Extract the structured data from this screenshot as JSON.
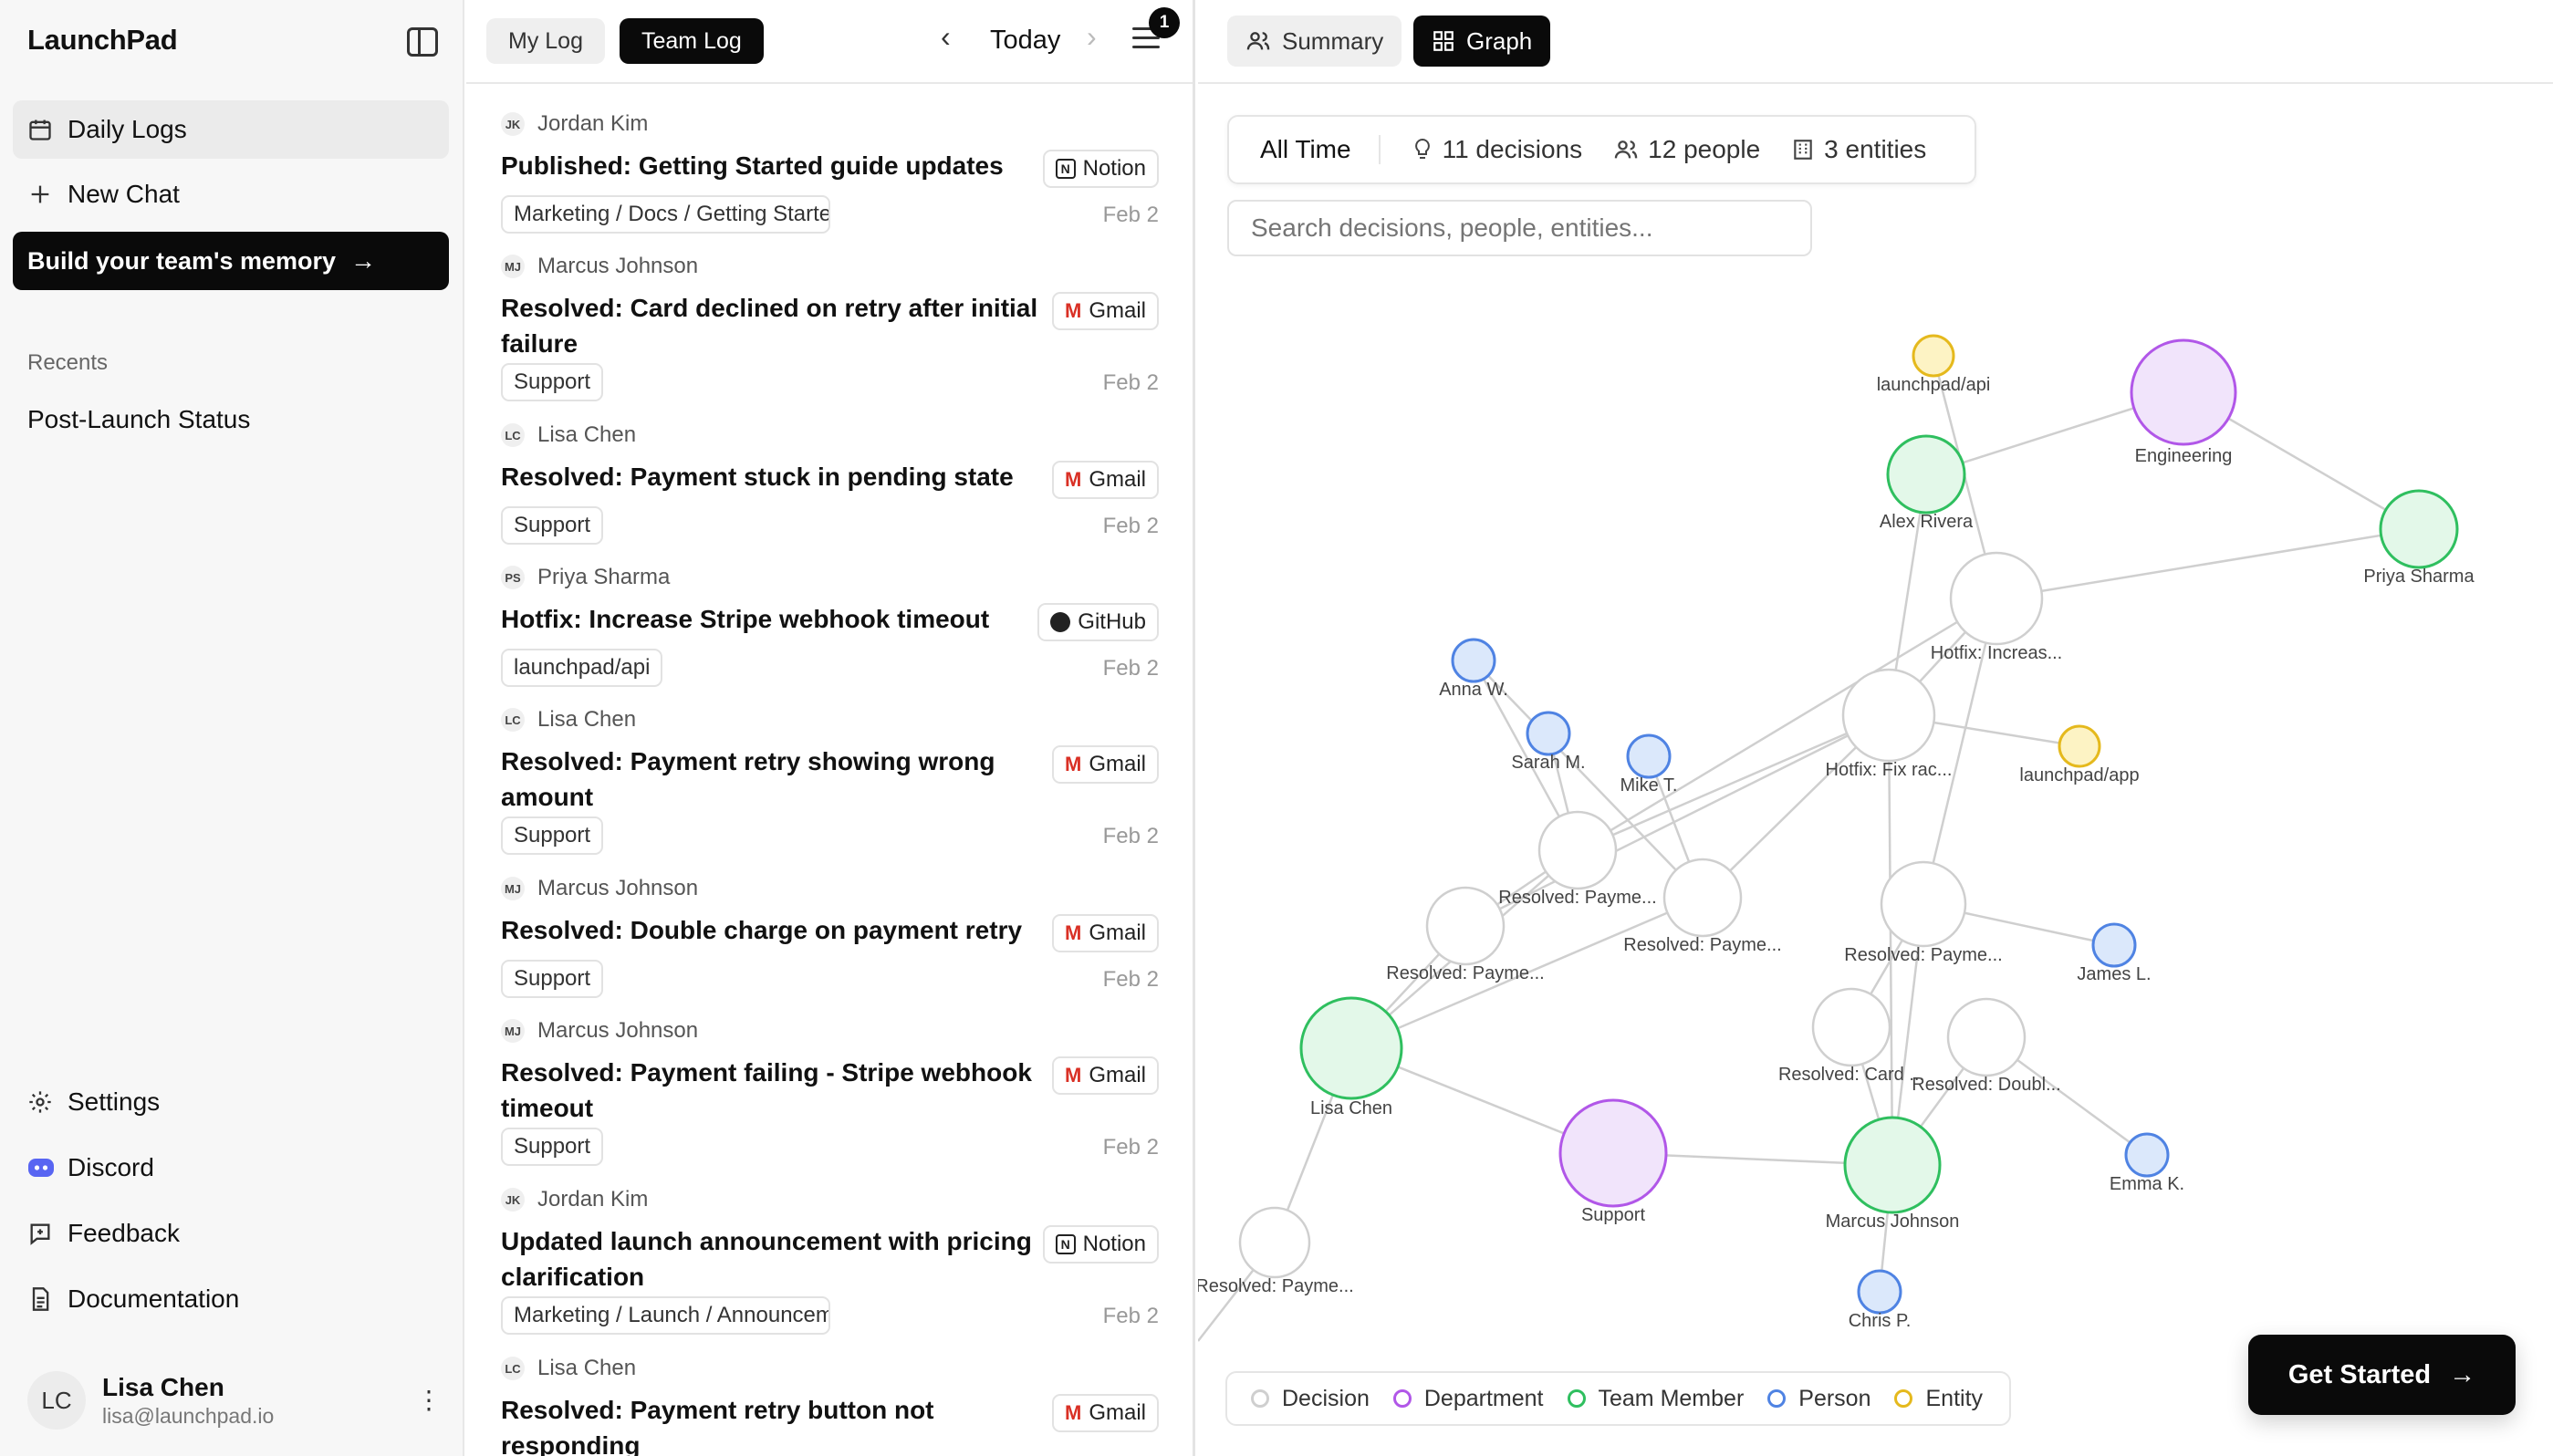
{
  "app": {
    "name": "LaunchPad"
  },
  "sidebar": {
    "nav": [
      {
        "label": "Daily Logs",
        "icon": "calendar-icon",
        "active": true
      },
      {
        "label": "New Chat",
        "icon": "plus-icon",
        "active": false
      }
    ],
    "cta_label": "Build your team's memory",
    "recents_heading": "Recents",
    "recents": [
      {
        "label": "Post-Launch Status"
      }
    ],
    "bottom": [
      {
        "label": "Settings",
        "icon": "gear-icon"
      },
      {
        "label": "Discord",
        "icon": "discord-icon"
      },
      {
        "label": "Feedback",
        "icon": "feedback-icon"
      },
      {
        "label": "Documentation",
        "icon": "document-icon"
      }
    ],
    "user": {
      "initials": "LC",
      "name": "Lisa Chen",
      "email": "lisa@launchpad.io"
    }
  },
  "log": {
    "tabs": [
      {
        "label": "My Log",
        "active": false
      },
      {
        "label": "Team Log",
        "active": true
      }
    ],
    "date_label": "Today",
    "notification_count": "1",
    "entries": [
      {
        "initials": "JK",
        "author": "Jordan Kim",
        "title": "Published: Getting Started guide updates",
        "source": "Notion",
        "tag": "Marketing / Docs / Getting Started",
        "date": "Feb 2"
      },
      {
        "initials": "MJ",
        "author": "Marcus Johnson",
        "title": "Resolved: Card declined on retry after initial failure",
        "source": "Gmail",
        "tag": "Support",
        "date": "Feb 2"
      },
      {
        "initials": "LC",
        "author": "Lisa Chen",
        "title": "Resolved: Payment stuck in pending state",
        "source": "Gmail",
        "tag": "Support",
        "date": "Feb 2"
      },
      {
        "initials": "PS",
        "author": "Priya Sharma",
        "title": "Hotfix: Increase Stripe webhook timeout",
        "source": "GitHub",
        "tag": "launchpad/api",
        "date": "Feb 2"
      },
      {
        "initials": "LC",
        "author": "Lisa Chen",
        "title": "Resolved: Payment retry showing wrong amount",
        "source": "Gmail",
        "tag": "Support",
        "date": "Feb 2"
      },
      {
        "initials": "MJ",
        "author": "Marcus Johnson",
        "title": "Resolved: Double charge on payment retry",
        "source": "Gmail",
        "tag": "Support",
        "date": "Feb 2"
      },
      {
        "initials": "MJ",
        "author": "Marcus Johnson",
        "title": "Resolved: Payment failing - Stripe webhook timeout",
        "source": "Gmail",
        "tag": "Support",
        "date": "Feb 2"
      },
      {
        "initials": "JK",
        "author": "Jordan Kim",
        "title": "Updated launch announcement with pricing clarification",
        "source": "Notion",
        "tag": "Marketing / Launch / Announcement",
        "date": "Feb 2"
      },
      {
        "initials": "LC",
        "author": "Lisa Chen",
        "title": "Resolved: Payment retry button not responding",
        "source": "Gmail",
        "tag": "",
        "date": ""
      }
    ]
  },
  "graph": {
    "tabs": [
      {
        "label": "Summary",
        "active": false
      },
      {
        "label": "Graph",
        "active": true
      }
    ],
    "range_label": "All Time",
    "stats": {
      "decisions": "11 decisions",
      "people": "12 people",
      "entities": "3 entities"
    },
    "search_placeholder": "Search decisions, people, entities...",
    "colors": {
      "decision": {
        "stroke": "#cfcfcf",
        "fill": "#ffffff"
      },
      "department": {
        "stroke": "#b157e8",
        "fill": "#f1e4fb"
      },
      "member": {
        "stroke": "#2fbf5f",
        "fill": "#e3f8e9"
      },
      "person": {
        "stroke": "#4f83e3",
        "fill": "#dbe8fb"
      },
      "entity": {
        "stroke": "#e5b91d",
        "fill": "#fdf3c4"
      }
    },
    "nodes": [
      {
        "id": "api",
        "label": "launchpad/api",
        "type": "entity"
      },
      {
        "id": "eng",
        "label": "Engineering",
        "type": "department"
      },
      {
        "id": "alex",
        "label": "Alex Rivera",
        "type": "member"
      },
      {
        "id": "priya",
        "label": "Priya Sharma",
        "type": "member"
      },
      {
        "id": "hotfix1",
        "label": "Hotfix: Increas...",
        "type": "decision"
      },
      {
        "id": "anna",
        "label": "Anna W.",
        "type": "person"
      },
      {
        "id": "sarah",
        "label": "Sarah M.",
        "type": "person"
      },
      {
        "id": "mike",
        "label": "Mike T.",
        "type": "person"
      },
      {
        "id": "hotfix2",
        "label": "Hotfix: Fix rac...",
        "type": "decision"
      },
      {
        "id": "app",
        "label": "launchpad/app",
        "type": "entity"
      },
      {
        "id": "rp1",
        "label": "Resolved: Payme...",
        "type": "decision"
      },
      {
        "id": "rp2",
        "label": "Resolved: Payme...",
        "type": "decision"
      },
      {
        "id": "rp3",
        "label": "Resolved: Payme...",
        "type": "decision"
      },
      {
        "id": "rp4",
        "label": "Resolved: Payme...",
        "type": "decision"
      },
      {
        "id": "james",
        "label": "James L.",
        "type": "person"
      },
      {
        "id": "lisa",
        "label": "Lisa Chen",
        "type": "member"
      },
      {
        "id": "card",
        "label": "Resolved: Card ...",
        "type": "decision"
      },
      {
        "id": "doubl",
        "label": "Resolved: Doubl...",
        "type": "decision"
      },
      {
        "id": "support",
        "label": "Support",
        "type": "department"
      },
      {
        "id": "marcus",
        "label": "Marcus Johnson",
        "type": "member"
      },
      {
        "id": "emma",
        "label": "Emma K.",
        "type": "person"
      },
      {
        "id": "rp5",
        "label": "Resolved: Payme...",
        "type": "decision"
      },
      {
        "id": "chris",
        "label": "Chris P.",
        "type": "person"
      }
    ],
    "edges": [
      [
        "api",
        "hotfix1"
      ],
      [
        "alex",
        "eng"
      ],
      [
        "eng",
        "priya"
      ],
      [
        "priya",
        "hotfix1"
      ],
      [
        "alex",
        "hotfix2"
      ],
      [
        "hotfix1",
        "rp1"
      ],
      [
        "hotfix1",
        "hotfix2"
      ],
      [
        "hotfix1",
        "rp4"
      ],
      [
        "hotfix2",
        "rp1"
      ],
      [
        "hotfix2",
        "rp2"
      ],
      [
        "hotfix2",
        "rp3"
      ],
      [
        "hotfix2",
        "app"
      ],
      [
        "hotfix2",
        "marcus"
      ],
      [
        "anna",
        "rp1"
      ],
      [
        "sarah",
        "rp1"
      ],
      [
        "mike",
        "rp2"
      ],
      [
        "anna",
        "rp2"
      ],
      [
        "rp1",
        "rp3"
      ],
      [
        "rp1",
        "lisa"
      ],
      [
        "rp3",
        "lisa"
      ],
      [
        "rp2",
        "lisa"
      ],
      [
        "rp4",
        "james"
      ],
      [
        "rp4",
        "card"
      ],
      [
        "rp4",
        "marcus"
      ],
      [
        "lisa",
        "support"
      ],
      [
        "support",
        "marcus"
      ],
      [
        "card",
        "marcus"
      ],
      [
        "doubl",
        "marcus"
      ],
      [
        "doubl",
        "emma"
      ],
      [
        "lisa",
        "rp5"
      ],
      [
        "rp5",
        "rp5x"
      ],
      [
        "marcus",
        "chris"
      ]
    ],
    "legend": [
      {
        "label": "Decision",
        "type": "decision"
      },
      {
        "label": "Department",
        "type": "department"
      },
      {
        "label": "Team Member",
        "type": "member"
      },
      {
        "label": "Person",
        "type": "person"
      },
      {
        "label": "Entity",
        "type": "entity"
      }
    ],
    "cta_label": "Get Started"
  }
}
